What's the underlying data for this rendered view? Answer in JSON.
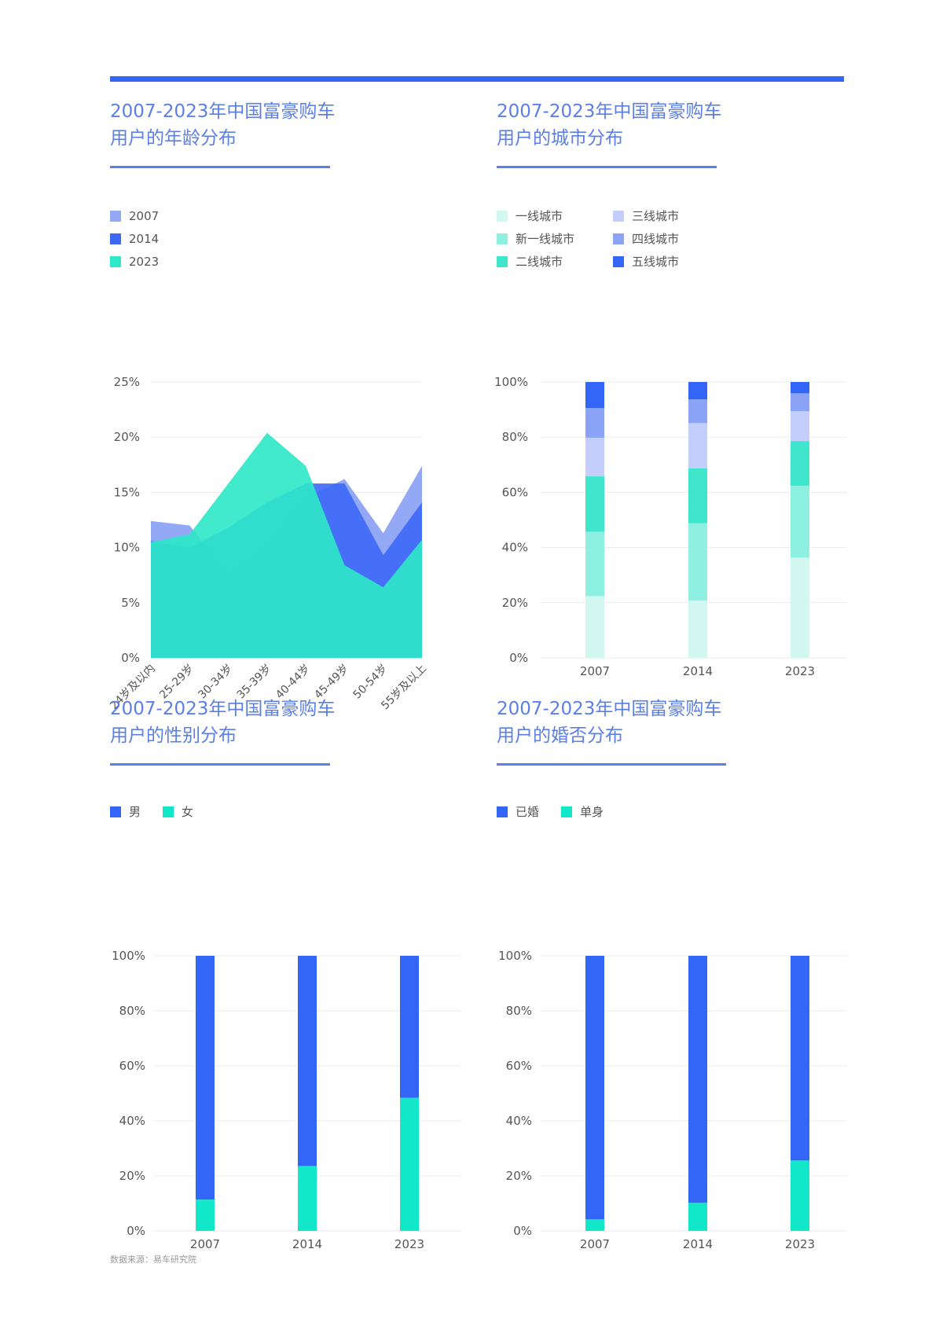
{
  "colors": {
    "accent": "#3366f6",
    "title": "#5b7fe6",
    "c2007": "#93a9f5",
    "c2014": "#3d68f6",
    "c2023": "#2ee8c8",
    "city1": "#d2f7f1",
    "city2": "#8ef0e0",
    "city3": "#40e6cc",
    "city4": "#c3cffa",
    "city5": "#8aa3f5",
    "city6": "#3366f6",
    "male": "#3366f6",
    "female": "#12e8c9",
    "married": "#3366f6",
    "single": "#12e8c9"
  },
  "charts": {
    "age": {
      "title_line1": "2007-2023年中国富豪购车",
      "title_line2": "用户的年龄分布"
    },
    "city": {
      "title_line1": "2007-2023年中国富豪购车",
      "title_line2": "用户的城市分布"
    },
    "gender": {
      "title_line1": "2007-2023年中国富豪购车",
      "title_line2": "用户的性别分布"
    },
    "marital": {
      "title_line1": "2007-2023年中国富豪购车",
      "title_line2": "用户的婚否分布"
    }
  },
  "chart_data": [
    {
      "id": "age",
      "type": "area",
      "title": "2007-2023年中国富豪购车用户的年龄分布",
      "categories": [
        "24岁及以内",
        "25-29岁",
        "30-34岁",
        "35-39岁",
        "40-44岁",
        "45-49岁",
        "50-54岁",
        "55岁及以上"
      ],
      "series": [
        {
          "name": "2007",
          "values": [
            12.4,
            12.0,
            7.4,
            10.3,
            14.5,
            16.2,
            11.3,
            17.4
          ]
        },
        {
          "name": "2014",
          "values": [
            10.6,
            10.0,
            11.8,
            14.1,
            15.8,
            15.8,
            9.3,
            14.1
          ]
        },
        {
          "name": "2023",
          "values": [
            10.5,
            11.2,
            15.8,
            20.4,
            17.4,
            8.4,
            6.4,
            10.7
          ]
        }
      ],
      "ylim": [
        0,
        25
      ],
      "yticks": [
        "0%",
        "5%",
        "10%",
        "15%",
        "20%",
        "25%"
      ],
      "legend": "top-left"
    },
    {
      "id": "city",
      "type": "bar",
      "stacked": true,
      "title": "2007-2023年中国富豪购车用户的城市分布",
      "categories": [
        "2007",
        "2014",
        "2023"
      ],
      "series": [
        {
          "name": "一线城市",
          "values": [
            22.4,
            20.8,
            36.4
          ]
        },
        {
          "name": "新一线城市",
          "values": [
            23.3,
            28.0,
            26.0
          ]
        },
        {
          "name": "二线城市",
          "values": [
            20.1,
            19.9,
            16.2
          ]
        },
        {
          "name": "三线城市",
          "values": [
            14.0,
            16.4,
            10.8
          ]
        },
        {
          "name": "四线城市",
          "values": [
            10.8,
            8.6,
            6.5
          ]
        },
        {
          "name": "五线城市",
          "values": [
            9.4,
            6.3,
            4.1
          ]
        }
      ],
      "ylim": [
        0,
        100
      ],
      "yticks": [
        "0%",
        "20%",
        "40%",
        "60%",
        "80%",
        "100%"
      ],
      "legend": "top-left"
    },
    {
      "id": "gender",
      "type": "bar",
      "stacked": true,
      "title": "2007-2023年中国富豪购车用户的性别分布",
      "categories": [
        "2007",
        "2014",
        "2023"
      ],
      "series": [
        {
          "name": "男",
          "values": [
            88.6,
            76.4,
            51.6
          ]
        },
        {
          "name": "女",
          "values": [
            11.4,
            23.6,
            48.4
          ]
        }
      ],
      "ylim": [
        0,
        100
      ],
      "yticks": [
        "0%",
        "20%",
        "40%",
        "60%",
        "80%",
        "100%"
      ],
      "legend": "top-left"
    },
    {
      "id": "marital",
      "type": "bar",
      "stacked": true,
      "title": "2007-2023年中国富豪购车用户的婚否分布",
      "categories": [
        "2007",
        "2014",
        "2023"
      ],
      "series": [
        {
          "name": "已婚",
          "values": [
            95.8,
            89.8,
            74.4
          ]
        },
        {
          "name": "单身",
          "values": [
            4.2,
            10.2,
            25.6
          ]
        }
      ],
      "ylim": [
        0,
        100
      ],
      "yticks": [
        "0%",
        "20%",
        "40%",
        "60%",
        "80%",
        "100%"
      ],
      "legend": "top-left"
    }
  ],
  "source": "数据来源：易车研究院"
}
